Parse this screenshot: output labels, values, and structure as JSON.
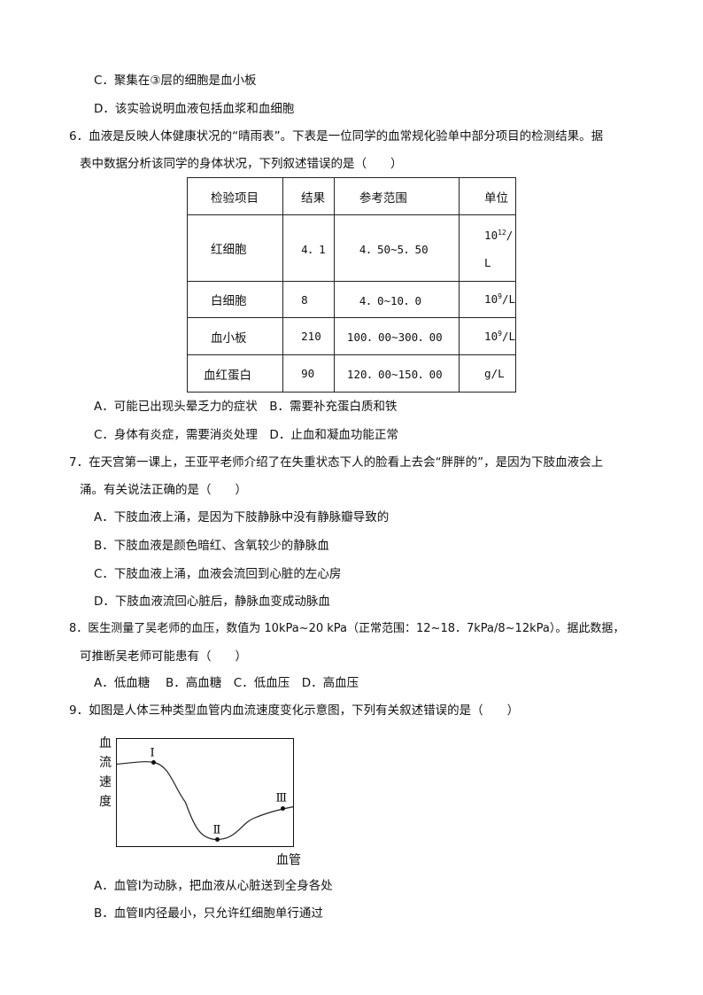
{
  "q5": {
    "option_c": "C．聚集在③层的细胞是血小板",
    "option_d": "D．该实验说明血液包括血浆和血细胞"
  },
  "q6": {
    "stem_line1": "6．血液是反映人体健康状况的“晴雨表”。下表是一位同学的血常规化验单中部分项目的检测结果。据",
    "stem_line2": "表中数据分析该同学的身体状况，下列叙述错误的是（　　）",
    "table": {
      "headers": [
        "检验项目",
        "结果",
        "参考范围",
        "单位"
      ],
      "rows": [
        {
          "item": "红细胞",
          "result": "4．1",
          "range": "4．50~5．50",
          "unit_base": "10",
          "unit_exp": "12",
          "unit_rest": "/",
          "unit_line2": "L"
        },
        {
          "item": "白细胞",
          "result": "8",
          "range": "4．0~10．0",
          "unit_base": "10",
          "unit_exp": "9",
          "unit_rest": "/L"
        },
        {
          "item": "血小板",
          "result": "210",
          "range": "100．00~300．00",
          "unit_base": "10",
          "unit_exp": "9",
          "unit_rest": "/L"
        },
        {
          "item": "血红蛋白",
          "result": "90",
          "range": "120．00~150．00",
          "unit_base": "g/L"
        }
      ]
    },
    "options_line1": "A．可能已出现头晕乏力的症状　B．需要补充蛋白质和铁",
    "options_line2": "C．身体有炎症，需要消炎处理　D．止血和凝血功能正常"
  },
  "q7": {
    "stem_line1": "7．在天宫第一课上，王亚平老师介绍了在失重状态下人的脸看上去会“胖胖的”，是因为下肢血液会上",
    "stem_line2": "涌。有关说法正确的是（　　）",
    "option_a": "A．下肢血液上涌，是因为下肢静脉中没有静脉瓣导致的",
    "option_b": "B．下肢血液是颜色暗红、含氧较少的静脉血",
    "option_c": "C．下肢血液上涌，血液会流回到心脏的左心房",
    "option_d": "D．下肢血液流回心脏后，静脉血变成动脉血"
  },
  "q8": {
    "stem_line1": "8．医生测量了吴老师的血压，数值为 10kPa~20 kPa（正常范围：12~18．7kPa/8~12kPa）。据此数据，",
    "stem_line2": "可推断吴老师可能患有（　　）",
    "options": "A．低血糖　 B．高血糖　C．低血压　D．高血压"
  },
  "q9": {
    "stem": "9．如图是人体三种类型血管内血流速度变化示意图，下列有关叙述错误的是（　　）",
    "figure": {
      "ylabel": "血流速度",
      "xlabel": "血管",
      "point_labels": [
        "Ⅰ",
        "Ⅱ",
        "Ⅲ"
      ]
    },
    "option_a": "A．血管Ⅰ为动脉，把血液从心脏送到全身各处",
    "option_b": "B．血管Ⅱ内径最小，只允许红细胞单行通过"
  }
}
